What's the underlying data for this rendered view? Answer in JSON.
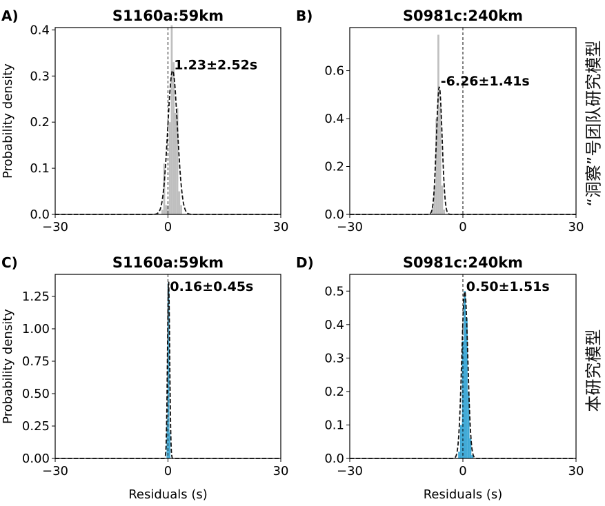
{
  "side_labels": {
    "top": "“洞察”号团队研究模型",
    "bottom": "本研究模型"
  },
  "chart_data": [
    {
      "type": "bar",
      "panel": "A)",
      "title": "S1160a:59km",
      "xlabel": "",
      "ylabel": "Probability density",
      "xlim": [
        -30,
        30
      ],
      "ylim": [
        0,
        0.405
      ],
      "xticks": [
        -30,
        0,
        30
      ],
      "xtick_labels": [
        "−30",
        "0",
        "30"
      ],
      "yticks": [
        0,
        0.1,
        0.2,
        0.3,
        0.4
      ],
      "ytick_labels": [
        "0.0",
        "0.1",
        "0.2",
        "0.3",
        "0.4"
      ],
      "color": "#bfbfbf",
      "bin_width": 0.5,
      "bins": [
        -1.5,
        -1.0,
        -0.5,
        0,
        0.5,
        1.0,
        1.5,
        2.0,
        2.5,
        3.0,
        3.5
      ],
      "values": [
        0.01,
        0.11,
        0.02,
        0.02,
        0.2,
        0.41,
        0.33,
        0.22,
        0.23,
        0.05,
        0.02
      ],
      "fit": {
        "mean": 1.23,
        "sd": 1.28
      },
      "annotation": "1.23±2.52s",
      "grid": false
    },
    {
      "type": "bar",
      "panel": "B)",
      "title": "S0981c:240km",
      "xlabel": "",
      "ylabel": "",
      "xlim": [
        -30,
        30
      ],
      "ylim": [
        0,
        0.78
      ],
      "xticks": [
        -30,
        0,
        30
      ],
      "xtick_labels": [
        "−30",
        "0",
        "30"
      ],
      "yticks": [
        0,
        0.2,
        0.4,
        0.6
      ],
      "ytick_labels": [
        "0.0",
        "0.2",
        "0.4",
        "0.6"
      ],
      "color": "#bfbfbf",
      "bin_width": 0.5,
      "bins": [
        -8.0,
        -7.5,
        -7.0,
        -6.5,
        -6.0,
        -5.5,
        -5.0
      ],
      "values": [
        0.03,
        0.12,
        0.4,
        0.75,
        0.45,
        0.12,
        0.02
      ],
      "fit": {
        "mean": -6.26,
        "sd": 0.75
      },
      "annotation": "-6.26±1.41s",
      "grid": false
    },
    {
      "type": "bar",
      "panel": "C)",
      "title": "S1160a:59km",
      "xlabel": "Residuals (s)",
      "ylabel": "Probability density",
      "xlim": [
        -30,
        30
      ],
      "ylim": [
        0,
        1.42
      ],
      "xticks": [
        -30,
        0,
        30
      ],
      "xtick_labels": [
        "−30",
        "0",
        "30"
      ],
      "yticks": [
        0,
        0.25,
        0.5,
        0.75,
        1.0,
        1.25
      ],
      "ytick_labels": [
        "0.00",
        "0.25",
        "0.50",
        "0.75",
        "1.00",
        "1.25"
      ],
      "color": "#3fa9d6",
      "bin_width": 0.25,
      "bins": [
        -0.25,
        0,
        0.25,
        0.5
      ],
      "values": [
        0.3,
        1.35,
        1.3,
        0.2
      ],
      "fit": {
        "mean": 0.16,
        "sd": 0.29
      },
      "annotation": "0.16±0.45s",
      "grid": false
    },
    {
      "type": "bar",
      "panel": "D)",
      "title": "S0981c:240km",
      "xlabel": "Residuals (s)",
      "ylabel": "",
      "xlim": [
        -30,
        30
      ],
      "ylim": [
        0,
        0.55
      ],
      "xticks": [
        -30,
        0,
        30
      ],
      "xtick_labels": [
        "−30",
        "0",
        "30"
      ],
      "yticks": [
        0,
        0.1,
        0.2,
        0.3,
        0.4,
        0.5
      ],
      "ytick_labels": [
        "0.0",
        "0.1",
        "0.2",
        "0.3",
        "0.4",
        "0.5"
      ],
      "color": "#3fa9d6",
      "bin_width": 0.5,
      "bins": [
        -1.0,
        -0.5,
        0,
        0.5,
        1.0,
        1.5,
        2.0,
        2.5
      ],
      "values": [
        0.02,
        0.1,
        0.35,
        0.5,
        0.42,
        0.2,
        0.06,
        0.01
      ],
      "fit": {
        "mean": 0.5,
        "sd": 0.8
      },
      "annotation": "0.50±1.51s",
      "grid": false
    }
  ]
}
